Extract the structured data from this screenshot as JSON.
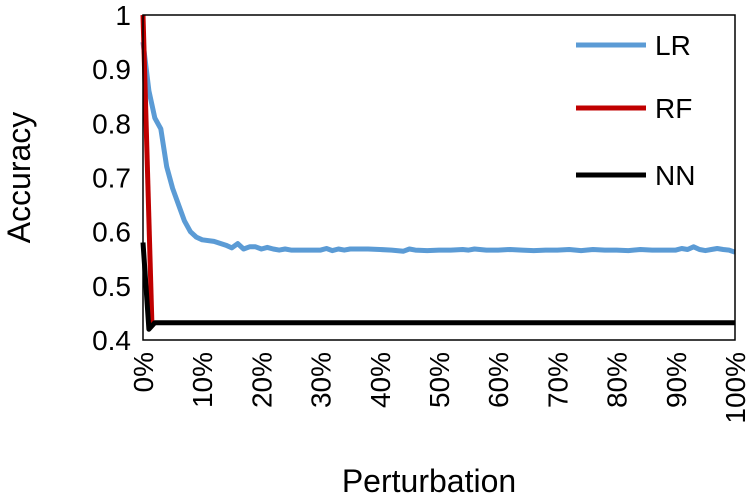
{
  "chart_data": {
    "type": "line",
    "title": "",
    "xlabel": "Perturbation",
    "ylabel": "Accuracy",
    "xlim": [
      0,
      100
    ],
    "ylim": [
      0.4,
      1.0
    ],
    "x_ticks": [
      "0%",
      "10%",
      "20%",
      "30%",
      "40%",
      "50%",
      "60%",
      "70%",
      "80%",
      "90%",
      "100%"
    ],
    "y_ticks": [
      "0.4",
      "0.5",
      "0.6",
      "0.7",
      "0.8",
      "0.9",
      "1"
    ],
    "grid": false,
    "legend_position": "right",
    "series": [
      {
        "name": "LR",
        "color": "#5b9bd5",
        "x": [
          0,
          1,
          2,
          3,
          4,
          5,
          6,
          7,
          8,
          9,
          10,
          12,
          14,
          15,
          16,
          17,
          18,
          19,
          20,
          21,
          22,
          23,
          24,
          25,
          26,
          27,
          28,
          29,
          30,
          31,
          32,
          33,
          34,
          35,
          36,
          37,
          38,
          40,
          42,
          44,
          45,
          46,
          48,
          50,
          52,
          54,
          55,
          56,
          58,
          60,
          62,
          64,
          66,
          68,
          70,
          72,
          74,
          76,
          78,
          80,
          82,
          84,
          86,
          88,
          90,
          91,
          92,
          93,
          94,
          95,
          96,
          97,
          98,
          99,
          100
        ],
        "y": [
          0.95,
          0.86,
          0.81,
          0.79,
          0.72,
          0.68,
          0.65,
          0.62,
          0.6,
          0.59,
          0.585,
          0.582,
          0.575,
          0.57,
          0.578,
          0.568,
          0.572,
          0.572,
          0.568,
          0.571,
          0.568,
          0.566,
          0.568,
          0.566,
          0.566,
          0.566,
          0.566,
          0.566,
          0.566,
          0.569,
          0.565,
          0.568,
          0.566,
          0.568,
          0.568,
          0.568,
          0.568,
          0.567,
          0.566,
          0.564,
          0.568,
          0.566,
          0.565,
          0.566,
          0.566,
          0.567,
          0.566,
          0.568,
          0.566,
          0.566,
          0.567,
          0.566,
          0.565,
          0.566,
          0.566,
          0.567,
          0.565,
          0.567,
          0.566,
          0.566,
          0.565,
          0.567,
          0.566,
          0.566,
          0.566,
          0.569,
          0.567,
          0.572,
          0.567,
          0.565,
          0.567,
          0.569,
          0.567,
          0.566,
          0.562
        ]
      },
      {
        "name": "RF",
        "color": "#c00000",
        "x": [
          0,
          1.5
        ],
        "y": [
          1.0,
          0.43
        ]
      },
      {
        "name": "NN",
        "color": "#000000",
        "x": [
          0,
          1,
          2,
          4,
          10,
          20,
          30,
          40,
          50,
          60,
          70,
          80,
          90,
          100
        ],
        "y": [
          0.58,
          0.42,
          0.432,
          0.432,
          0.432,
          0.432,
          0.432,
          0.432,
          0.432,
          0.432,
          0.432,
          0.432,
          0.432,
          0.432
        ]
      }
    ]
  }
}
